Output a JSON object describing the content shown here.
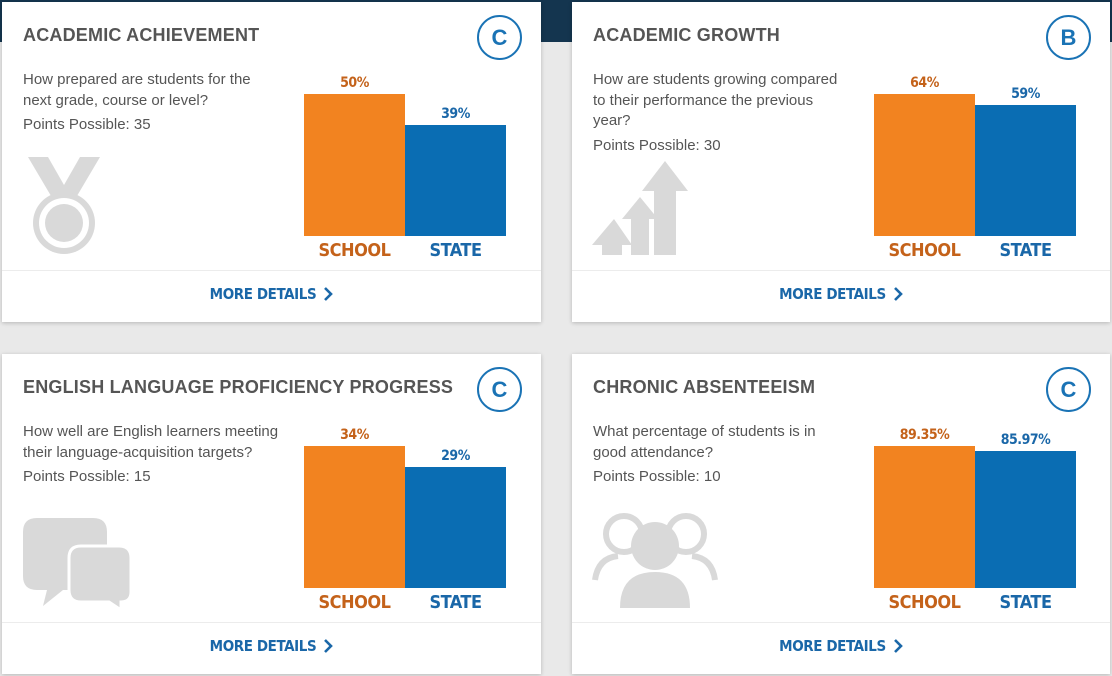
{
  "colors": {
    "school": "#f28320",
    "state": "#0a6db3",
    "accent": "#1a73b5",
    "icon": "#d9d9d9"
  },
  "cards": [
    {
      "title": "ACADEMIC ACHIEVEMENT",
      "grade": "C",
      "question": "How prepared are students for the next grade, course or level?",
      "points": "Points Possible: 35",
      "icon": "medal-icon",
      "school_label": "50%",
      "state_label": "39%",
      "school_category": "SCHOOL",
      "state_category": "STATE",
      "more": "MORE DETAILS"
    },
    {
      "title": "ACADEMIC GROWTH",
      "grade": "B",
      "question": "How are students growing compared to their performance the previous year?",
      "points": "Points Possible: 30",
      "icon": "growth-arrows-icon",
      "school_label": "64%",
      "state_label": "59%",
      "school_category": "SCHOOL",
      "state_category": "STATE",
      "more": "MORE DETAILS"
    },
    {
      "title": "ENGLISH LANGUAGE PROFICIENCY PROGRESS",
      "grade": "C",
      "question": "How well are English learners meeting their language-acquisition targets?",
      "points": "Points Possible: 15",
      "icon": "chat-bubbles-icon",
      "school_label": "34%",
      "state_label": "29%",
      "school_category": "SCHOOL",
      "state_category": "STATE",
      "more": "MORE DETAILS"
    },
    {
      "title": "CHRONIC ABSENTEEISM",
      "grade": "C",
      "question": "What percentage of students is in good attendance?",
      "points": "Points Possible: 10",
      "icon": "people-icon",
      "school_label": "89.35%",
      "state_label": "85.97%",
      "school_category": "SCHOOL",
      "state_category": "STATE",
      "more": "MORE DETAILS"
    }
  ],
  "chart_data": [
    {
      "type": "bar",
      "categories": [
        "SCHOOL",
        "STATE"
      ],
      "values": [
        50,
        39
      ]
    },
    {
      "type": "bar",
      "categories": [
        "SCHOOL",
        "STATE"
      ],
      "values": [
        64,
        59
      ]
    },
    {
      "type": "bar",
      "categories": [
        "SCHOOL",
        "STATE"
      ],
      "values": [
        34,
        29
      ]
    },
    {
      "type": "bar",
      "categories": [
        "SCHOOL",
        "STATE"
      ],
      "values": [
        89.35,
        85.97
      ]
    }
  ]
}
